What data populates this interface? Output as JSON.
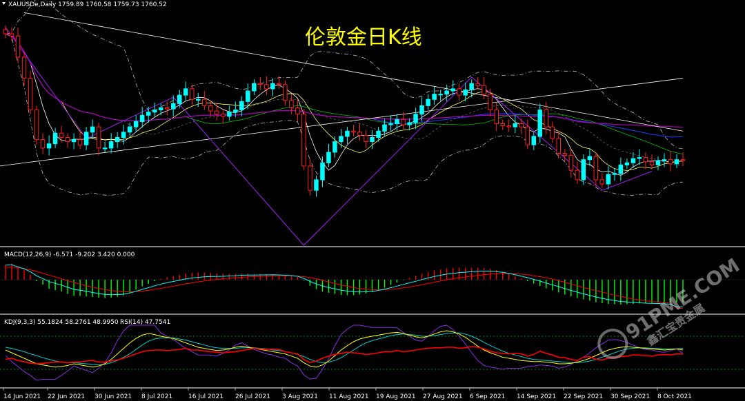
{
  "header": {
    "symbol_text": "XAUUSDe,Daily  1759.89 1760.58 1759.73 1760.52",
    "chart_title": "伦敦金日K线"
  },
  "panels": {
    "macd_label": "MACD(12,26,9) -6.571 -9.202 3.420 0.000",
    "kdj_label": "KDJ(9,3,3) 55.1824 58.2761 48.9950",
    "rsi_label": "RSI(14) 47.7541"
  },
  "watermark": {
    "text": "91PME.COM",
    "sub": "鑫汇宝贵金属"
  },
  "colors": {
    "background": "#000000",
    "bull_candle": "#00ffff",
    "bear_candle": "#ff2020",
    "separator": "#ffffff",
    "title": "#ffff00",
    "macd_positive": "#ff0000",
    "macd_negative": "#00ff00",
    "macd_signal": "#ff0000",
    "macd_line": "#00ffff",
    "kdj_k": "#ffff00",
    "kdj_d": "#00cccc",
    "kdj_j": "#8a2be2",
    "rsi": "#ff0000",
    "bollinger": "#ffffff",
    "ma_fast": "#ffffff",
    "ma_mid": "#ffff66",
    "ma_slow": "#00c000",
    "ma_blue": "#2040ff",
    "ma_purple": "#b000b0",
    "zigzag": "#a020f0",
    "trendline": "#ffffff",
    "level_dots": "#00c000"
  },
  "x_axis_labels": [
    "14 Jun 2021",
    "22 Jun 2021",
    "30 Jun 2021",
    "8 Jul 2021",
    "16 Jul 2021",
    "26 Jul 2021",
    "3 Aug 2021",
    "11 Aug 2021",
    "19 Aug 2021",
    "27 Aug 2021",
    "6 Sep 2021",
    "14 Sep 2021",
    "22 Sep 2021",
    "30 Sep 2021",
    "8 Oct 2021"
  ],
  "chart_data": {
    "type": "candlestick",
    "symbol": "XAUUSDe",
    "timeframe": "Daily",
    "ohlc_last": {
      "open": 1759.89,
      "high": 1760.58,
      "low": 1759.73,
      "close": 1760.52
    },
    "price_range": [
      1680,
      1912
    ],
    "candles_close": [
      1880,
      1878,
      1858,
      1838,
      1808,
      1780,
      1772,
      1776,
      1786,
      1782,
      1778,
      1780,
      1775,
      1787,
      1792,
      1772,
      1772,
      1778,
      1782,
      1787,
      1792,
      1797,
      1803,
      1806,
      1808,
      1810,
      1809,
      1814,
      1822,
      1828,
      1818,
      1818,
      1812,
      1807,
      1804,
      1802,
      1806,
      1808,
      1816,
      1826,
      1833,
      1832,
      1828,
      1833,
      1832,
      1817,
      1810,
      1804,
      1755,
      1732,
      1742,
      1758,
      1768,
      1778,
      1783,
      1788,
      1787,
      1784,
      1778,
      1782,
      1788,
      1794,
      1795,
      1799,
      1794,
      1796,
      1804,
      1812,
      1818,
      1823,
      1823,
      1826,
      1828,
      1822,
      1827,
      1833,
      1831,
      1823,
      1808,
      1795,
      1793,
      1792,
      1795,
      1792,
      1775,
      1783,
      1808,
      1792,
      1781,
      1767,
      1765,
      1751,
      1742,
      1761,
      1764,
      1742,
      1738,
      1747,
      1748,
      1756,
      1758,
      1762,
      1763,
      1759,
      1756,
      1760,
      1761,
      1757,
      1761,
      1760
    ],
    "macd": {
      "values": [
        4.42,
        4.6,
        3.57,
        2.77,
        1.5,
        -0.4,
        -1.4,
        -2.6,
        -3.0,
        -3.4,
        -4.1,
        -4.7,
        -4.7,
        -4.8,
        -5.0,
        -5.2,
        -5.3,
        -5.2,
        -4.9,
        -4.5,
        -3.8,
        -2.9,
        -1.9,
        -1.2,
        -0.4,
        0.3,
        0.7,
        1.1,
        1.4,
        1.8,
        2.0,
        2.1,
        2.1,
        2.0,
        1.8,
        1.7,
        1.7,
        1.7,
        1.8,
        1.8,
        1.7,
        1.7,
        1.6,
        1.6,
        1.5,
        1.3,
        1.1,
        0.8,
        -0.2,
        -1.7,
        -2.7,
        -3.4,
        -3.8,
        -4.1,
        -4.4,
        -4.5,
        -4.5,
        -4.3,
        -4.0,
        -3.6,
        -3.0,
        -2.3,
        -1.5,
        -0.8,
        -0.1,
        0.5,
        1.1,
        1.7,
        2.2,
        2.7,
        3.0,
        3.3,
        3.4,
        3.5,
        3.5,
        3.5,
        3.5,
        3.4,
        3.2,
        2.8,
        2.3,
        1.7,
        1.0,
        0.3,
        -0.4,
        -1.1,
        -1.8,
        -2.5,
        -3.1,
        -3.7,
        -4.3,
        -4.8,
        -5.3,
        -5.7,
        -6.1,
        -6.5,
        -6.8,
        -7.0,
        -7.1,
        -7.2,
        -7.1,
        -7.0,
        -6.9,
        -6.8,
        -6.7,
        -6.6,
        -6.6,
        -6.6,
        -6.571,
        -6.571
      ],
      "signal": [
        4.0,
        4.1,
        3.9,
        3.6,
        3.2,
        2.7,
        2.1,
        1.5,
        0.9,
        0.3,
        -0.3,
        -0.9,
        -1.4,
        -1.9,
        -2.4,
        -2.8,
        -3.2,
        -3.5,
        -3.7,
        -3.9,
        -3.9,
        -3.8,
        -3.7,
        -3.4,
        -3.1,
        -2.8,
        -2.4,
        -2.1,
        -1.7,
        -1.3,
        -1.0,
        -0.7,
        -0.4,
        -0.1,
        0.1,
        0.3,
        0.5,
        0.6,
        0.8,
        0.9,
        1.0,
        1.1,
        1.2,
        1.3,
        1.3,
        1.3,
        1.3,
        1.2,
        1.0,
        0.7,
        0.3,
        -0.2,
        -0.7,
        -1.2,
        -1.7,
        -2.1,
        -2.5,
        -2.8,
        -3.0,
        -3.2,
        -3.2,
        -3.2,
        -3.1,
        -2.9,
        -2.6,
        -2.3,
        -2.0,
        -1.6,
        -1.2,
        -0.8,
        -0.4,
        0.0,
        0.3,
        0.6,
        0.9,
        1.2,
        1.4,
        1.6,
        1.8,
        1.9,
        2.0,
        2.0,
        1.9,
        1.8,
        1.6,
        1.3,
        1.0,
        0.6,
        0.2,
        -0.3,
        -0.8,
        -1.4,
        -1.9,
        -2.5,
        -3.0,
        -3.5,
        -4.0,
        -4.5,
        -5.0,
        -5.4,
        -5.8,
        -6.2,
        -6.5,
        -6.8,
        -7.0,
        -7.2,
        -7.4,
        -7.6,
        -9.202,
        -9.202
      ],
      "histogram_last": 3.42
    },
    "kdj": {
      "k": [
        55,
        50,
        45,
        40,
        35,
        30,
        28,
        26,
        24,
        25,
        27,
        30,
        28,
        26,
        24,
        26,
        30,
        38,
        48,
        58,
        68,
        76,
        82,
        85,
        83,
        80,
        78,
        76,
        72,
        68,
        64,
        60,
        58,
        56,
        54,
        55,
        57,
        60,
        62,
        60,
        58,
        56,
        54,
        52,
        50,
        48,
        44,
        40,
        32,
        26,
        24,
        28,
        35,
        45,
        55,
        63,
        70,
        75,
        78,
        80,
        82,
        84,
        86,
        87,
        85,
        82,
        79,
        77,
        80,
        84,
        88,
        90,
        88,
        84,
        78,
        70,
        62,
        55,
        50,
        46,
        42,
        40,
        38,
        36,
        35,
        34,
        34,
        33,
        32,
        30,
        30,
        31,
        33,
        36,
        40,
        45,
        50,
        55,
        58,
        60,
        61,
        60,
        59,
        58,
        57,
        56,
        55,
        56,
        57,
        55.18
      ],
      "d": [
        60,
        58,
        55,
        52,
        48,
        45,
        41,
        38,
        35,
        33,
        32,
        32,
        31,
        30,
        29,
        28,
        29,
        32,
        36,
        42,
        48,
        56,
        64,
        71,
        75,
        77,
        77,
        77,
        75,
        73,
        70,
        67,
        64,
        61,
        59,
        58,
        58,
        58,
        59,
        59,
        59,
        58,
        57,
        55,
        54,
        52,
        50,
        47,
        43,
        38,
        34,
        32,
        33,
        36,
        41,
        48,
        55,
        62,
        68,
        72,
        75,
        78,
        81,
        83,
        84,
        83,
        82,
        80,
        80,
        81,
        83,
        85,
        86,
        86,
        84,
        80,
        75,
        69,
        63,
        58,
        53,
        49,
        46,
        43,
        40,
        38,
        37,
        36,
        35,
        34,
        33,
        32,
        32,
        33,
        35,
        38,
        42,
        46,
        50,
        54,
        57,
        58,
        59,
        59,
        58,
        58,
        57,
        57,
        57,
        58.28
      ],
      "j": [
        45,
        34,
        25,
        16,
        9,
        0,
        2,
        2,
        2,
        9,
        17,
        26,
        22,
        18,
        14,
        22,
        32,
        50,
        72,
        90,
        100,
        100,
        100,
        100,
        100,
        86,
        80,
        74,
        66,
        58,
        52,
        46,
        46,
        46,
        44,
        49,
        55,
        64,
        68,
        62,
        56,
        52,
        48,
        46,
        42,
        40,
        32,
        26,
        10,
        2,
        4,
        20,
        39,
        63,
        83,
        93,
        100,
        100,
        98,
        96,
        96,
        96,
        96,
        95,
        87,
        80,
        73,
        71,
        80,
        90,
        98,
        100,
        92,
        80,
        66,
        50,
        36,
        27,
        24,
        22,
        20,
        22,
        22,
        22,
        25,
        26,
        28,
        27,
        26,
        22,
        24,
        29,
        35,
        42,
        50,
        59,
        66,
        73,
        74,
        72,
        69,
        64,
        59,
        56,
        55,
        52,
        51,
        54,
        57,
        48.995
      ]
    },
    "rsi": {
      "period": 14,
      "values": [
        38,
        40,
        36,
        34,
        31,
        30,
        31,
        32,
        33,
        33,
        32,
        33,
        33,
        35,
        36,
        33,
        33,
        35,
        37,
        40,
        44,
        48,
        52,
        54,
        55,
        55,
        54,
        55,
        56,
        58,
        55,
        55,
        53,
        52,
        51,
        50,
        51,
        52,
        54,
        56,
        58,
        57,
        56,
        57,
        56,
        52,
        50,
        48,
        38,
        32,
        35,
        40,
        44,
        47,
        49,
        51,
        50,
        49,
        47,
        48,
        50,
        52,
        52,
        54,
        52,
        53,
        55,
        57,
        58,
        59,
        59,
        60,
        60,
        58,
        59,
        61,
        60,
        57,
        53,
        50,
        49,
        48,
        49,
        48,
        44,
        47,
        53,
        49,
        46,
        42,
        41,
        38,
        36,
        42,
        43,
        38,
        37,
        40,
        41,
        43,
        44,
        46,
        46,
        45,
        44,
        46,
        47,
        46,
        48,
        47.75
      ]
    }
  }
}
